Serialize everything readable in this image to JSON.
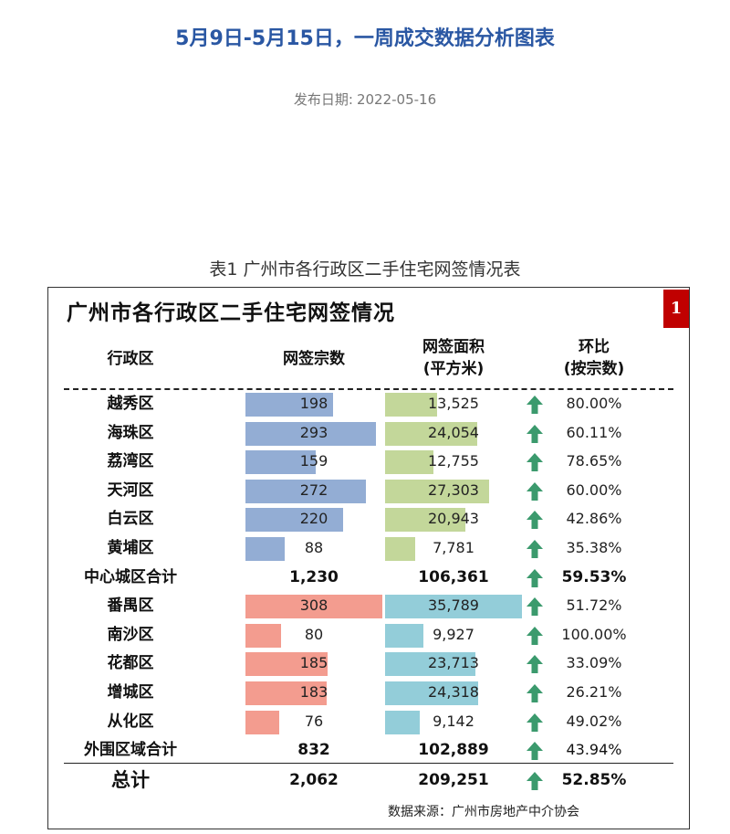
{
  "page_title": "5月9日-5月15日，一周成交数据分析图表",
  "publish": {
    "label": "发布日期:",
    "date": "2022-05-16"
  },
  "table_caption": "表1 广州市各行政区二手住宅网签情况表",
  "frame_title": "广州市各行政区二手住宅网签情况",
  "badge": "1",
  "headers": {
    "district": "行政区",
    "count": "网签宗数",
    "area_line1": "网签面积",
    "area_line2": "(平方米)",
    "ratio_line1": "环比",
    "ratio_line2": "(按宗数)"
  },
  "colors": {
    "central_count_bar": "#93add4",
    "central_area_bar": "#c3d79a",
    "outer_count_bar": "#f39c8f",
    "outer_area_bar": "#93cdd9",
    "arrow": "#3b9a6d"
  },
  "scale": {
    "count_max": 308,
    "area_max": 35789
  },
  "rows": [
    {
      "name": "越秀区",
      "count": "198",
      "count_value": 198,
      "area": "13,525",
      "area_value": 13525,
      "ratio": "80.00%",
      "group": "central"
    },
    {
      "name": "海珠区",
      "count": "293",
      "count_value": 293,
      "area": "24,054",
      "area_value": 24054,
      "ratio": "60.11%",
      "group": "central"
    },
    {
      "name": "荔湾区",
      "count": "159",
      "count_value": 159,
      "area": "12,755",
      "area_value": 12755,
      "ratio": "78.65%",
      "group": "central"
    },
    {
      "name": "天河区",
      "count": "272",
      "count_value": 272,
      "area": "27,303",
      "area_value": 27303,
      "ratio": "60.00%",
      "group": "central"
    },
    {
      "name": "白云区",
      "count": "220",
      "count_value": 220,
      "area": "20,943",
      "area_value": 20943,
      "ratio": "42.86%",
      "group": "central"
    },
    {
      "name": "黄埔区",
      "count": "88",
      "count_value": 88,
      "area": "7,781",
      "area_value": 7781,
      "ratio": "35.38%",
      "group": "central"
    },
    {
      "name": "中心城区合计",
      "count": "1,230",
      "area": "106,361",
      "ratio": "59.53%",
      "group": "subtotal",
      "bold_ratio": true
    },
    {
      "name": "番禺区",
      "count": "308",
      "count_value": 308,
      "area": "35,789",
      "area_value": 35789,
      "ratio": "51.72%",
      "group": "outer"
    },
    {
      "name": "南沙区",
      "count": "80",
      "count_value": 80,
      "area": "9,927",
      "area_value": 9927,
      "ratio": "100.00%",
      "group": "outer"
    },
    {
      "name": "花都区",
      "count": "185",
      "count_value": 185,
      "area": "23,713",
      "area_value": 23713,
      "ratio": "33.09%",
      "group": "outer"
    },
    {
      "name": "增城区",
      "count": "183",
      "count_value": 183,
      "area": "24,318",
      "area_value": 24318,
      "ratio": "26.21%",
      "group": "outer"
    },
    {
      "name": "从化区",
      "count": "76",
      "count_value": 76,
      "area": "9,142",
      "area_value": 9142,
      "ratio": "49.02%",
      "group": "outer"
    },
    {
      "name": "外围区域合计",
      "count": "832",
      "area": "102,889",
      "ratio": "43.94%",
      "group": "subtotal",
      "bold_ratio": false
    }
  ],
  "total": {
    "name": "总计",
    "count": "2,062",
    "area": "209,251",
    "ratio": "52.85%"
  },
  "source": "数据来源：广州市房地产中介协会"
}
